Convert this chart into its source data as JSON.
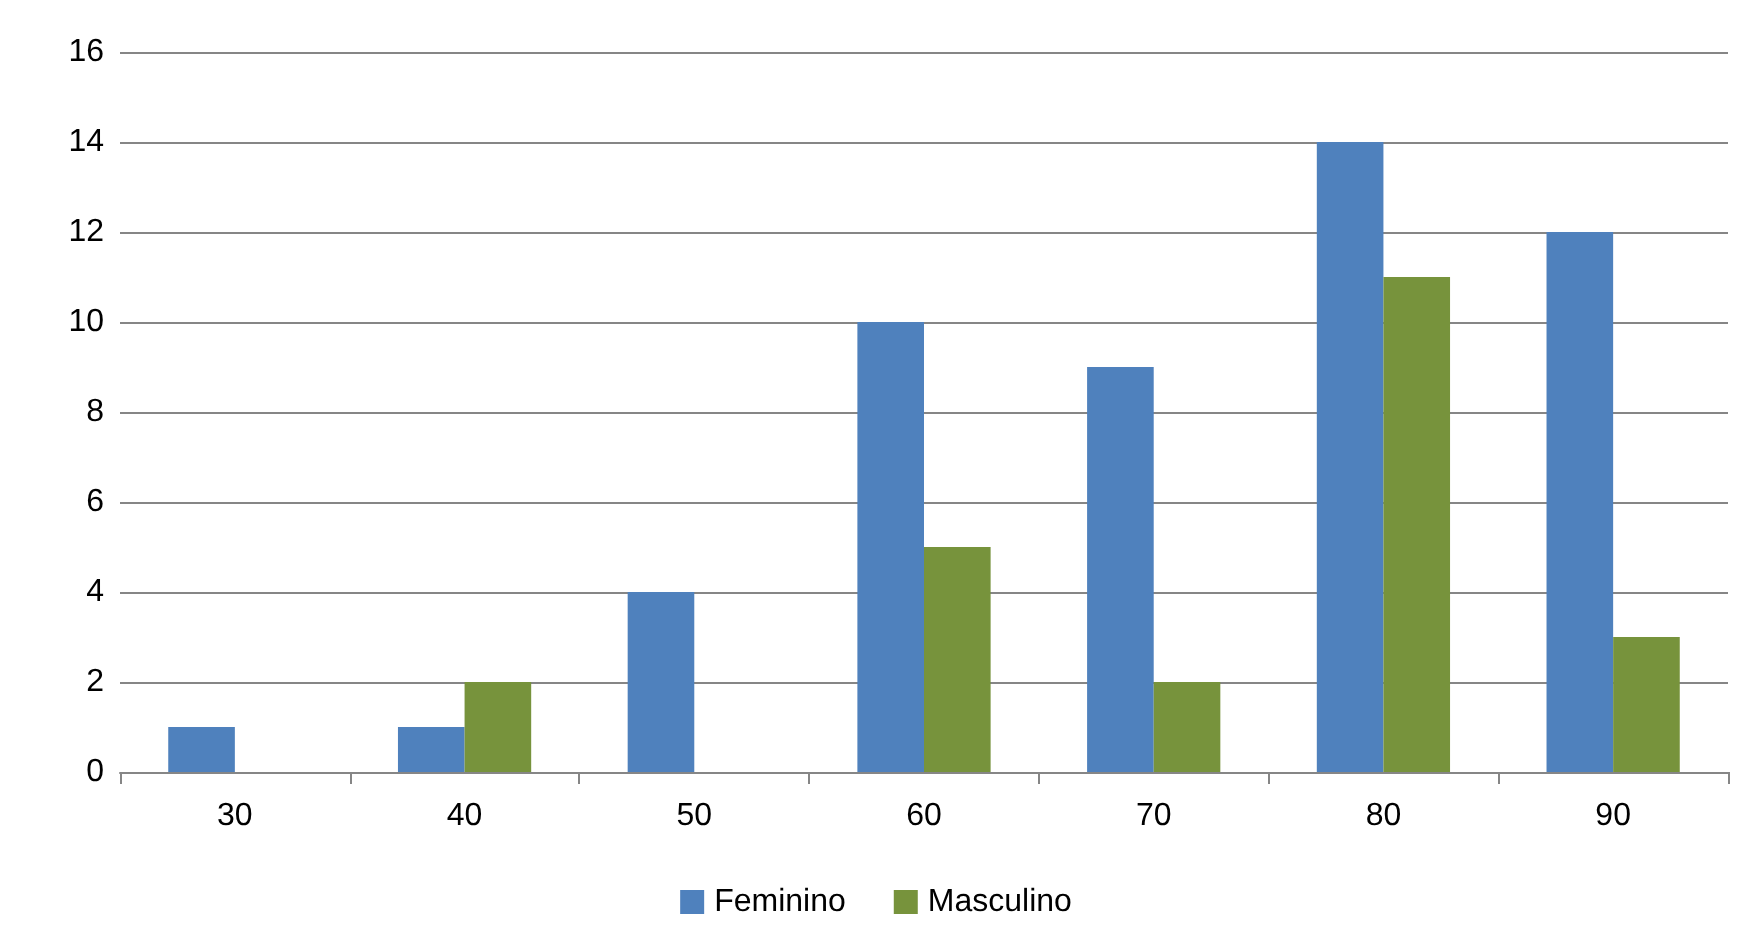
{
  "chart_data": {
    "type": "bar",
    "categories": [
      "30",
      "40",
      "50",
      "60",
      "70",
      "80",
      "90"
    ],
    "series": [
      {
        "name": "Feminino",
        "color": "#4f81bd",
        "values": [
          1,
          1,
          4,
          10,
          9,
          14,
          12
        ]
      },
      {
        "name": "Masculino",
        "color": "#77933c",
        "values": [
          0,
          2,
          0,
          5,
          2,
          11,
          3
        ]
      }
    ],
    "ylim": [
      0,
      16
    ],
    "yticks": [
      0,
      2,
      4,
      6,
      8,
      10,
      12,
      14,
      16
    ],
    "grid": "y",
    "legend": "bottom"
  }
}
